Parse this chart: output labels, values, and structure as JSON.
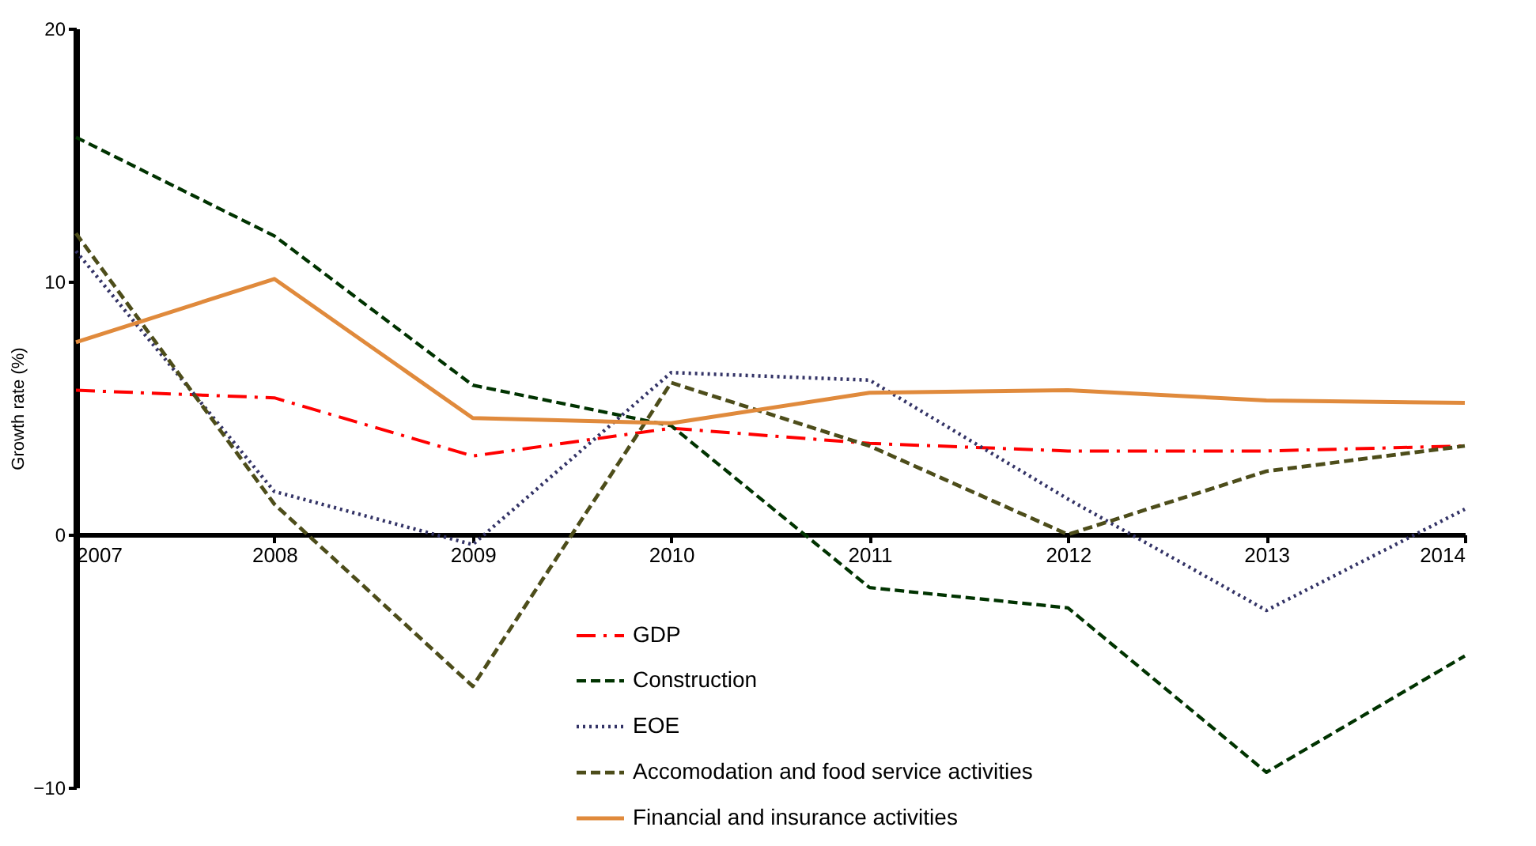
{
  "chart_data": {
    "type": "line",
    "ylabel": "Growth rate (%)",
    "x": [
      2007,
      2008,
      2009,
      2010,
      2011,
      2012,
      2013,
      2014
    ],
    "xlim": [
      2007,
      2014
    ],
    "xticks": [
      2007,
      2008,
      2009,
      2010,
      2011,
      2012,
      2013,
      2014
    ],
    "ylim": [
      -10,
      20
    ],
    "yticks": [
      -10,
      0,
      10,
      20
    ],
    "legend": "bottom",
    "series": [
      {
        "name": "GDP",
        "color": "#ff0000",
        "line_style": "dashdot",
        "values": [
          5.7,
          5.4,
          3.1,
          4.2,
          3.6,
          3.3,
          3.3,
          3.5
        ]
      },
      {
        "name": "Construction",
        "color": "#003300",
        "line_style": "dashed",
        "values": [
          15.7,
          11.8,
          5.9,
          4.3,
          -2.1,
          -2.9,
          -9.4,
          -4.8
        ]
      },
      {
        "name": "EOE",
        "color": "#333366",
        "line_style": "dotted",
        "values": [
          11.2,
          1.7,
          -0.4,
          6.4,
          6.1,
          1.4,
          -3.0,
          1.0
        ]
      },
      {
        "name": "Accomodation and food service activities",
        "color": "#4d4d1a",
        "line_style": "dashed",
        "values": [
          11.9,
          1.2,
          -6.0,
          6.0,
          3.5,
          0.0,
          2.5,
          3.5
        ]
      },
      {
        "name": "Financial and insurance activities",
        "color": "#e08a3c",
        "line_style": "solid",
        "values": [
          7.6,
          10.1,
          4.6,
          4.4,
          5.6,
          5.7,
          5.3,
          5.2
        ]
      }
    ]
  }
}
